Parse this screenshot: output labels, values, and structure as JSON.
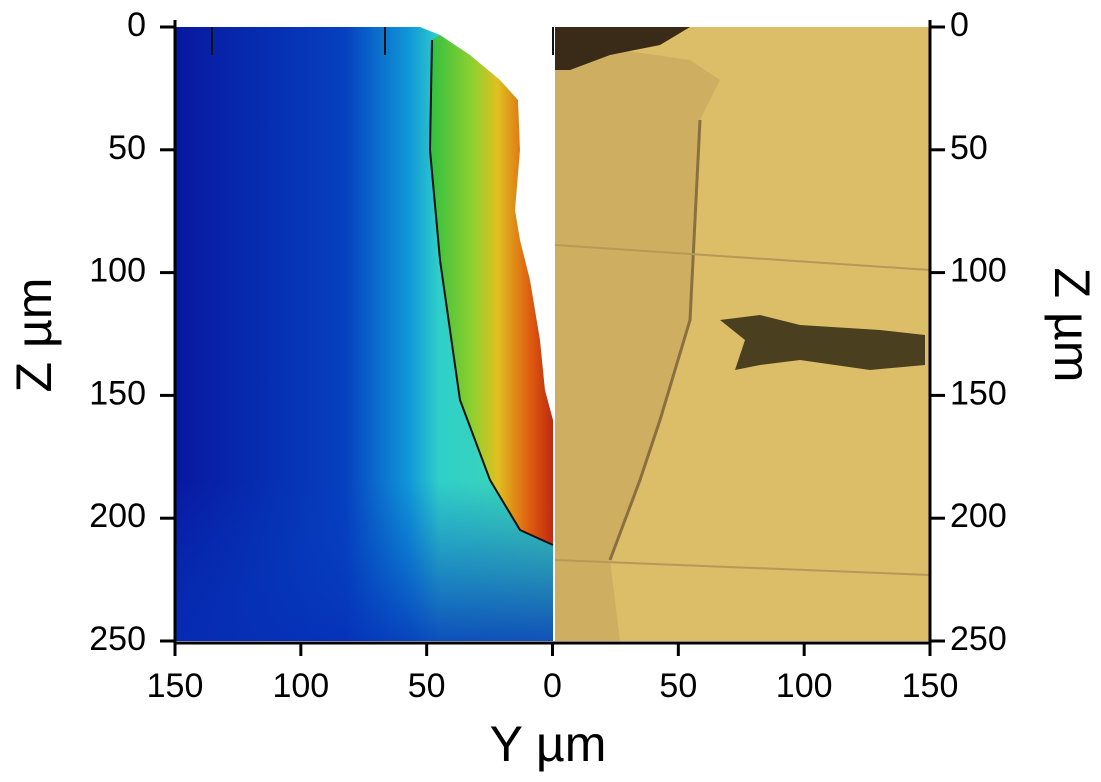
{
  "chart_data": {
    "type": "image",
    "xlabel": "Y µm",
    "ylabel": "Z µm",
    "y2label": "Z µm",
    "xlim": [
      -150,
      150
    ],
    "xticks": [
      {
        "value": -150,
        "label": "150"
      },
      {
        "value": -100,
        "label": "100"
      },
      {
        "value": -50,
        "label": "50"
      },
      0,
      50,
      100,
      150
    ],
    "ylim": [
      250,
      0
    ],
    "yticks": [
      0,
      50,
      100,
      150,
      200,
      250
    ],
    "y2lim": [
      250,
      0
    ],
    "y2ticks": [
      0,
      50,
      100,
      150,
      200,
      250
    ]
  }
}
